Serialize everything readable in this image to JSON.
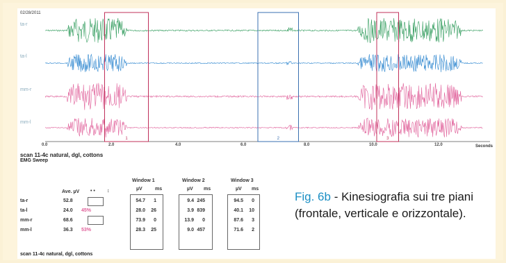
{
  "chart_data": {
    "type": "line",
    "date": "02/28/2011",
    "title": "scan 11-4c natural, dgl, cottons",
    "subtitle": "EMG Sweep",
    "xlabel": "Seconds",
    "x_ticks": [
      "0.0",
      "2.0",
      "4.0",
      "6.0",
      "8.0",
      "10.0",
      "12.0"
    ],
    "xlim": [
      0,
      14
    ],
    "series": [
      {
        "name": "ta-r",
        "color": "#2e9a5a"
      },
      {
        "name": "ta-l",
        "color": "#2d86cf"
      },
      {
        "name": "mm-r",
        "color": "#e0609a"
      },
      {
        "name": "mm-l",
        "color": "#e0609a"
      }
    ],
    "windows": [
      {
        "label": "1",
        "start": 1.9,
        "end": 3.3,
        "color": "#c0305a"
      },
      {
        "label": "2",
        "start": 6.8,
        "end": 8.1,
        "color": "#3a6fb0"
      },
      {
        "label": "3",
        "start": 10.6,
        "end": 11.3,
        "color": "#c0305a"
      }
    ],
    "bursts": [
      [
        0.7,
        2.6,
        1.0
      ],
      [
        7.7,
        7.9,
        0.5
      ],
      [
        10.0,
        13.3,
        1.0
      ]
    ]
  },
  "table": {
    "ave_header": "Ave. µV",
    "sym1": "• •",
    "sym2": "↕",
    "window_headers": [
      "Window 1",
      "Window 2",
      "Window 3"
    ],
    "unit_uv": "µV",
    "unit_ms": "ms",
    "rows": [
      {
        "label": "ta-r",
        "ave": "52.8",
        "pct": "",
        "w1_uv": "54.7",
        "w1_ms": "1",
        "w2_uv": "9.4",
        "w2_ms": "245",
        "w3_uv": "94.5",
        "w3_ms": "0"
      },
      {
        "label": "ta-l",
        "ave": "24.0",
        "pct": "45%",
        "w1_uv": "28.0",
        "w1_ms": "26",
        "w2_uv": "3.9",
        "w2_ms": "839",
        "w3_uv": "40.1",
        "w3_ms": "10"
      },
      {
        "label": "mm-r",
        "ave": "68.6",
        "pct": "",
        "w1_uv": "73.9",
        "w1_ms": "0",
        "w2_uv": "13.9",
        "w2_ms": "0",
        "w3_uv": "87.6",
        "w3_ms": "3"
      },
      {
        "label": "mm-l",
        "ave": "36.3",
        "pct": "53%",
        "w1_uv": "28.3",
        "w1_ms": "25",
        "w2_uv": "9.0",
        "w2_ms": "457",
        "w3_uv": "71.6",
        "w3_ms": "2"
      }
    ]
  },
  "footer_title": "scan 11-4c natural, dgl, cottons",
  "caption": {
    "label": "Fig. 6b",
    "text": " - Kinesiografia sui tre piani (frontale, verticale e orizzontale)."
  }
}
